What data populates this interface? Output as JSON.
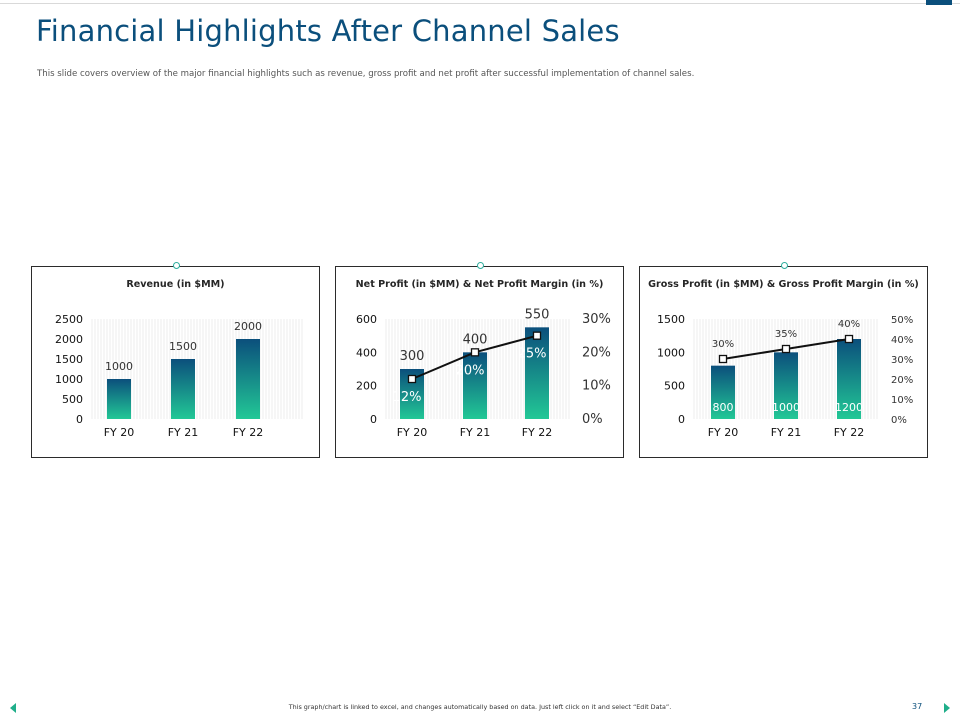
{
  "slide": {
    "title": "Financial Highlights After Channel Sales",
    "subtitle": "This slide covers overview of the major financial highlights such as revenue, gross profit and net profit after successful implementation of channel sales.",
    "footer_note": "This graph/chart is linked to excel, and changes automatically based on data. Just left click on it and select “Edit Data”.",
    "page_number": "37"
  },
  "colors": {
    "title": "#0b4f7c",
    "bar_top": "#0b4f7c",
    "bar_bottom": "#22c896",
    "accent": "#1fae8a"
  },
  "icons": {
    "prev": "triangle-left-icon",
    "next": "triangle-right-icon"
  },
  "chart_data": [
    {
      "type": "bar",
      "title": "Revenue (in $MM)",
      "categories": [
        "FY 20",
        "FY 21",
        "FY 22"
      ],
      "values": [
        1000,
        1500,
        2000
      ],
      "ylim": [
        0,
        2500
      ],
      "yticks": [
        0,
        500,
        1000,
        1500,
        2000,
        2500
      ],
      "data_labels": [
        "1000",
        "1500",
        "2000"
      ]
    },
    {
      "type": "bar",
      "title": "Net Profit (in $MM) & Net Profit Margin (in %)",
      "categories": [
        "FY 20",
        "FY 21",
        "FY 22"
      ],
      "values": [
        300,
        400,
        550
      ],
      "ylim": [
        0,
        600
      ],
      "yticks": [
        0,
        200,
        400,
        600
      ],
      "data_labels": [
        "300",
        "400",
        "550"
      ],
      "line": {
        "values": [
          12,
          20,
          25
        ],
        "labels": [
          "12%",
          "20%",
          "25%"
        ],
        "ylim": [
          0,
          30
        ],
        "yticks": [
          "0%",
          "10%",
          "20%",
          "30%"
        ]
      }
    },
    {
      "type": "bar",
      "title": "Gross Profit (in $MM) & Gross Profit Margin (in %)",
      "categories": [
        "FY 20",
        "FY 21",
        "FY 22"
      ],
      "values": [
        800,
        1000,
        1200
      ],
      "ylim": [
        0,
        1500
      ],
      "yticks": [
        0,
        500,
        1000,
        1500
      ],
      "data_labels": [
        "800",
        "1000",
        "1200"
      ],
      "line": {
        "values": [
          30,
          35,
          40
        ],
        "labels": [
          "30%",
          "35%",
          "40%"
        ],
        "ylim": [
          0,
          50
        ],
        "yticks": [
          "0%",
          "10%",
          "20%",
          "30%",
          "40%",
          "50%"
        ]
      }
    }
  ]
}
